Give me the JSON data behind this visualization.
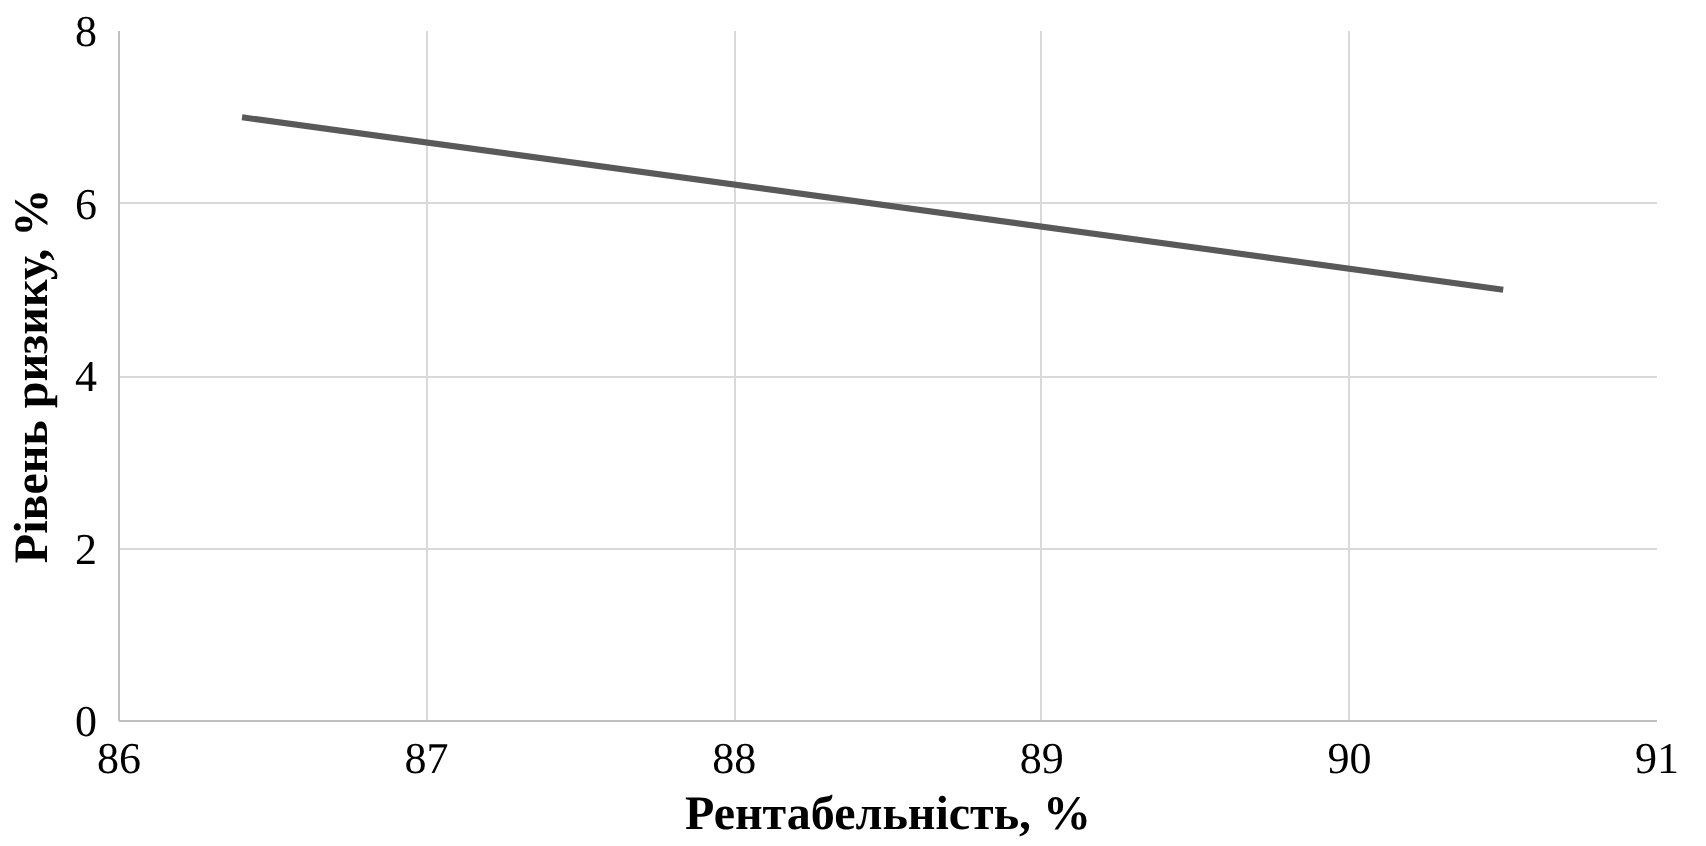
{
  "chart_data": {
    "type": "line",
    "xlabel": "Рентабельність, %",
    "ylabel": "Рівень ризику, %",
    "x": [
      86.4,
      90.5
    ],
    "series": [
      {
        "color": "#595959",
        "values": [
          7,
          5
        ]
      }
    ],
    "xlim": [
      86,
      91
    ],
    "xticks": [
      86,
      87,
      88,
      89,
      90,
      91
    ],
    "ylim": [
      0,
      8
    ],
    "yticks": [
      0,
      2,
      4,
      6,
      8
    ],
    "grid": true,
    "marker": "none",
    "line_style": "solid"
  }
}
